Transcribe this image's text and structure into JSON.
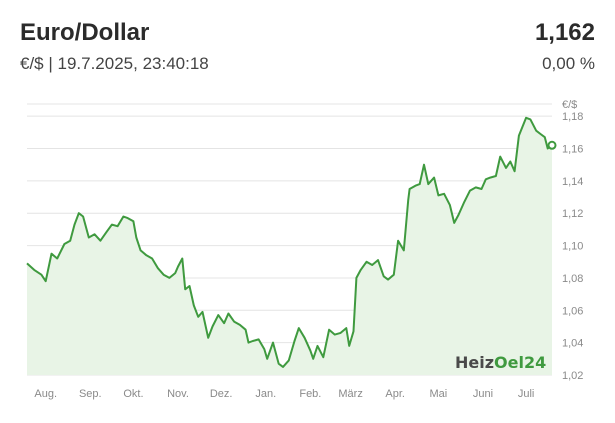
{
  "header": {
    "title": "Euro/Dollar",
    "value": "1,162",
    "subtitle": "€/$ | 19.7.2025, 23:40:18",
    "change": "0,00 %"
  },
  "watermark": {
    "part1": "Heiz",
    "part2": "Oel",
    "part3": "24"
  },
  "colors": {
    "line": "#3f9a3f",
    "area": "#e8f4e6",
    "watermark_gray": "#4a4a4a",
    "watermark_green": "#3f9a3f"
  },
  "chart_data": {
    "type": "area",
    "ylabel": "€/$",
    "ylim": [
      1.02,
      1.19
    ],
    "y_ticks": [
      {
        "value": 1.18,
        "label": "1,18"
      },
      {
        "value": 1.16,
        "label": "1,16"
      },
      {
        "value": 1.14,
        "label": "1,14"
      },
      {
        "value": 1.12,
        "label": "1,12"
      },
      {
        "value": 1.1,
        "label": "1,10"
      },
      {
        "value": 1.08,
        "label": "1,08"
      },
      {
        "value": 1.06,
        "label": "1,06"
      },
      {
        "value": 1.04,
        "label": "1,04"
      },
      {
        "value": 1.02,
        "label": "1,02"
      }
    ],
    "x_range": [
      "2024-07-19",
      "2025-07-19"
    ],
    "x_ticks": [
      {
        "date": "2024-08-01",
        "label": "Aug."
      },
      {
        "date": "2024-09-01",
        "label": "Sep."
      },
      {
        "date": "2024-10-01",
        "label": "Okt."
      },
      {
        "date": "2024-11-01",
        "label": "Nov."
      },
      {
        "date": "2024-12-01",
        "label": "Dez."
      },
      {
        "date": "2025-01-01",
        "label": "Jan."
      },
      {
        "date": "2025-02-01",
        "label": "Feb."
      },
      {
        "date": "2025-03-01",
        "label": "März"
      },
      {
        "date": "2025-04-01",
        "label": "Apr."
      },
      {
        "date": "2025-05-01",
        "label": "Mai"
      },
      {
        "date": "2025-06-01",
        "label": "Juni"
      },
      {
        "date": "2025-07-01",
        "label": "Juli"
      }
    ],
    "grid": true,
    "series": [
      {
        "points": [
          [
            "2024-07-19",
            1.089
          ],
          [
            "2024-07-24",
            1.085
          ],
          [
            "2024-07-29",
            1.082
          ],
          [
            "2024-08-01",
            1.078
          ],
          [
            "2024-08-05",
            1.095
          ],
          [
            "2024-08-09",
            1.092
          ],
          [
            "2024-08-14",
            1.101
          ],
          [
            "2024-08-18",
            1.103
          ],
          [
            "2024-08-21",
            1.113
          ],
          [
            "2024-08-24",
            1.12
          ],
          [
            "2024-08-27",
            1.118
          ],
          [
            "2024-08-31",
            1.105
          ],
          [
            "2024-09-04",
            1.107
          ],
          [
            "2024-09-08",
            1.103
          ],
          [
            "2024-09-12",
            1.108
          ],
          [
            "2024-09-16",
            1.113
          ],
          [
            "2024-09-20",
            1.112
          ],
          [
            "2024-09-24",
            1.118
          ],
          [
            "2024-09-27",
            1.117
          ],
          [
            "2024-10-01",
            1.115
          ],
          [
            "2024-10-03",
            1.105
          ],
          [
            "2024-10-06",
            1.097
          ],
          [
            "2024-10-10",
            1.094
          ],
          [
            "2024-10-14",
            1.092
          ],
          [
            "2024-10-18",
            1.086
          ],
          [
            "2024-10-22",
            1.082
          ],
          [
            "2024-10-26",
            1.08
          ],
          [
            "2024-10-30",
            1.083
          ],
          [
            "2024-11-01",
            1.087
          ],
          [
            "2024-11-04",
            1.092
          ],
          [
            "2024-11-06",
            1.073
          ],
          [
            "2024-11-09",
            1.075
          ],
          [
            "2024-11-12",
            1.063
          ],
          [
            "2024-11-15",
            1.056
          ],
          [
            "2024-11-18",
            1.059
          ],
          [
            "2024-11-22",
            1.043
          ],
          [
            "2024-11-25",
            1.05
          ],
          [
            "2024-11-29",
            1.057
          ],
          [
            "2024-12-03",
            1.052
          ],
          [
            "2024-12-06",
            1.058
          ],
          [
            "2024-12-10",
            1.053
          ],
          [
            "2024-12-14",
            1.051
          ],
          [
            "2024-12-18",
            1.048
          ],
          [
            "2024-12-20",
            1.04
          ],
          [
            "2024-12-23",
            1.041
          ],
          [
            "2024-12-27",
            1.042
          ],
          [
            "2024-12-31",
            1.036
          ],
          [
            "2025-01-02",
            1.03
          ],
          [
            "2025-01-06",
            1.04
          ],
          [
            "2025-01-10",
            1.027
          ],
          [
            "2025-01-13",
            1.025
          ],
          [
            "2025-01-17",
            1.029
          ],
          [
            "2025-01-21",
            1.041
          ],
          [
            "2025-01-24",
            1.049
          ],
          [
            "2025-01-28",
            1.043
          ],
          [
            "2025-02-01",
            1.035
          ],
          [
            "2025-02-03",
            1.03
          ],
          [
            "2025-02-06",
            1.038
          ],
          [
            "2025-02-10",
            1.031
          ],
          [
            "2025-02-14",
            1.048
          ],
          [
            "2025-02-18",
            1.045
          ],
          [
            "2025-02-22",
            1.046
          ],
          [
            "2025-02-26",
            1.049
          ],
          [
            "2025-02-28",
            1.038
          ],
          [
            "2025-03-03",
            1.047
          ],
          [
            "2025-03-05",
            1.08
          ],
          [
            "2025-03-08",
            1.085
          ],
          [
            "2025-03-12",
            1.09
          ],
          [
            "2025-03-16",
            1.088
          ],
          [
            "2025-03-20",
            1.091
          ],
          [
            "2025-03-24",
            1.081
          ],
          [
            "2025-03-27",
            1.079
          ],
          [
            "2025-03-31",
            1.082
          ],
          [
            "2025-04-03",
            1.103
          ],
          [
            "2025-04-07",
            1.097
          ],
          [
            "2025-04-10",
            1.128
          ],
          [
            "2025-04-11",
            1.135
          ],
          [
            "2025-04-15",
            1.137
          ],
          [
            "2025-04-18",
            1.138
          ],
          [
            "2025-04-21",
            1.15
          ],
          [
            "2025-04-24",
            1.138
          ],
          [
            "2025-04-28",
            1.142
          ],
          [
            "2025-05-01",
            1.131
          ],
          [
            "2025-05-05",
            1.132
          ],
          [
            "2025-05-09",
            1.125
          ],
          [
            "2025-05-12",
            1.114
          ],
          [
            "2025-05-15",
            1.119
          ],
          [
            "2025-05-19",
            1.127
          ],
          [
            "2025-05-23",
            1.134
          ],
          [
            "2025-05-27",
            1.136
          ],
          [
            "2025-05-31",
            1.135
          ],
          [
            "2025-06-03",
            1.141
          ],
          [
            "2025-06-06",
            1.142
          ],
          [
            "2025-06-10",
            1.143
          ],
          [
            "2025-06-13",
            1.155
          ],
          [
            "2025-06-17",
            1.148
          ],
          [
            "2025-06-20",
            1.152
          ],
          [
            "2025-06-23",
            1.146
          ],
          [
            "2025-06-26",
            1.168
          ],
          [
            "2025-07-01",
            1.179
          ],
          [
            "2025-07-04",
            1.178
          ],
          [
            "2025-07-08",
            1.171
          ],
          [
            "2025-07-11",
            1.169
          ],
          [
            "2025-07-14",
            1.167
          ],
          [
            "2025-07-16",
            1.16
          ],
          [
            "2025-07-19",
            1.162
          ]
        ]
      }
    ]
  }
}
